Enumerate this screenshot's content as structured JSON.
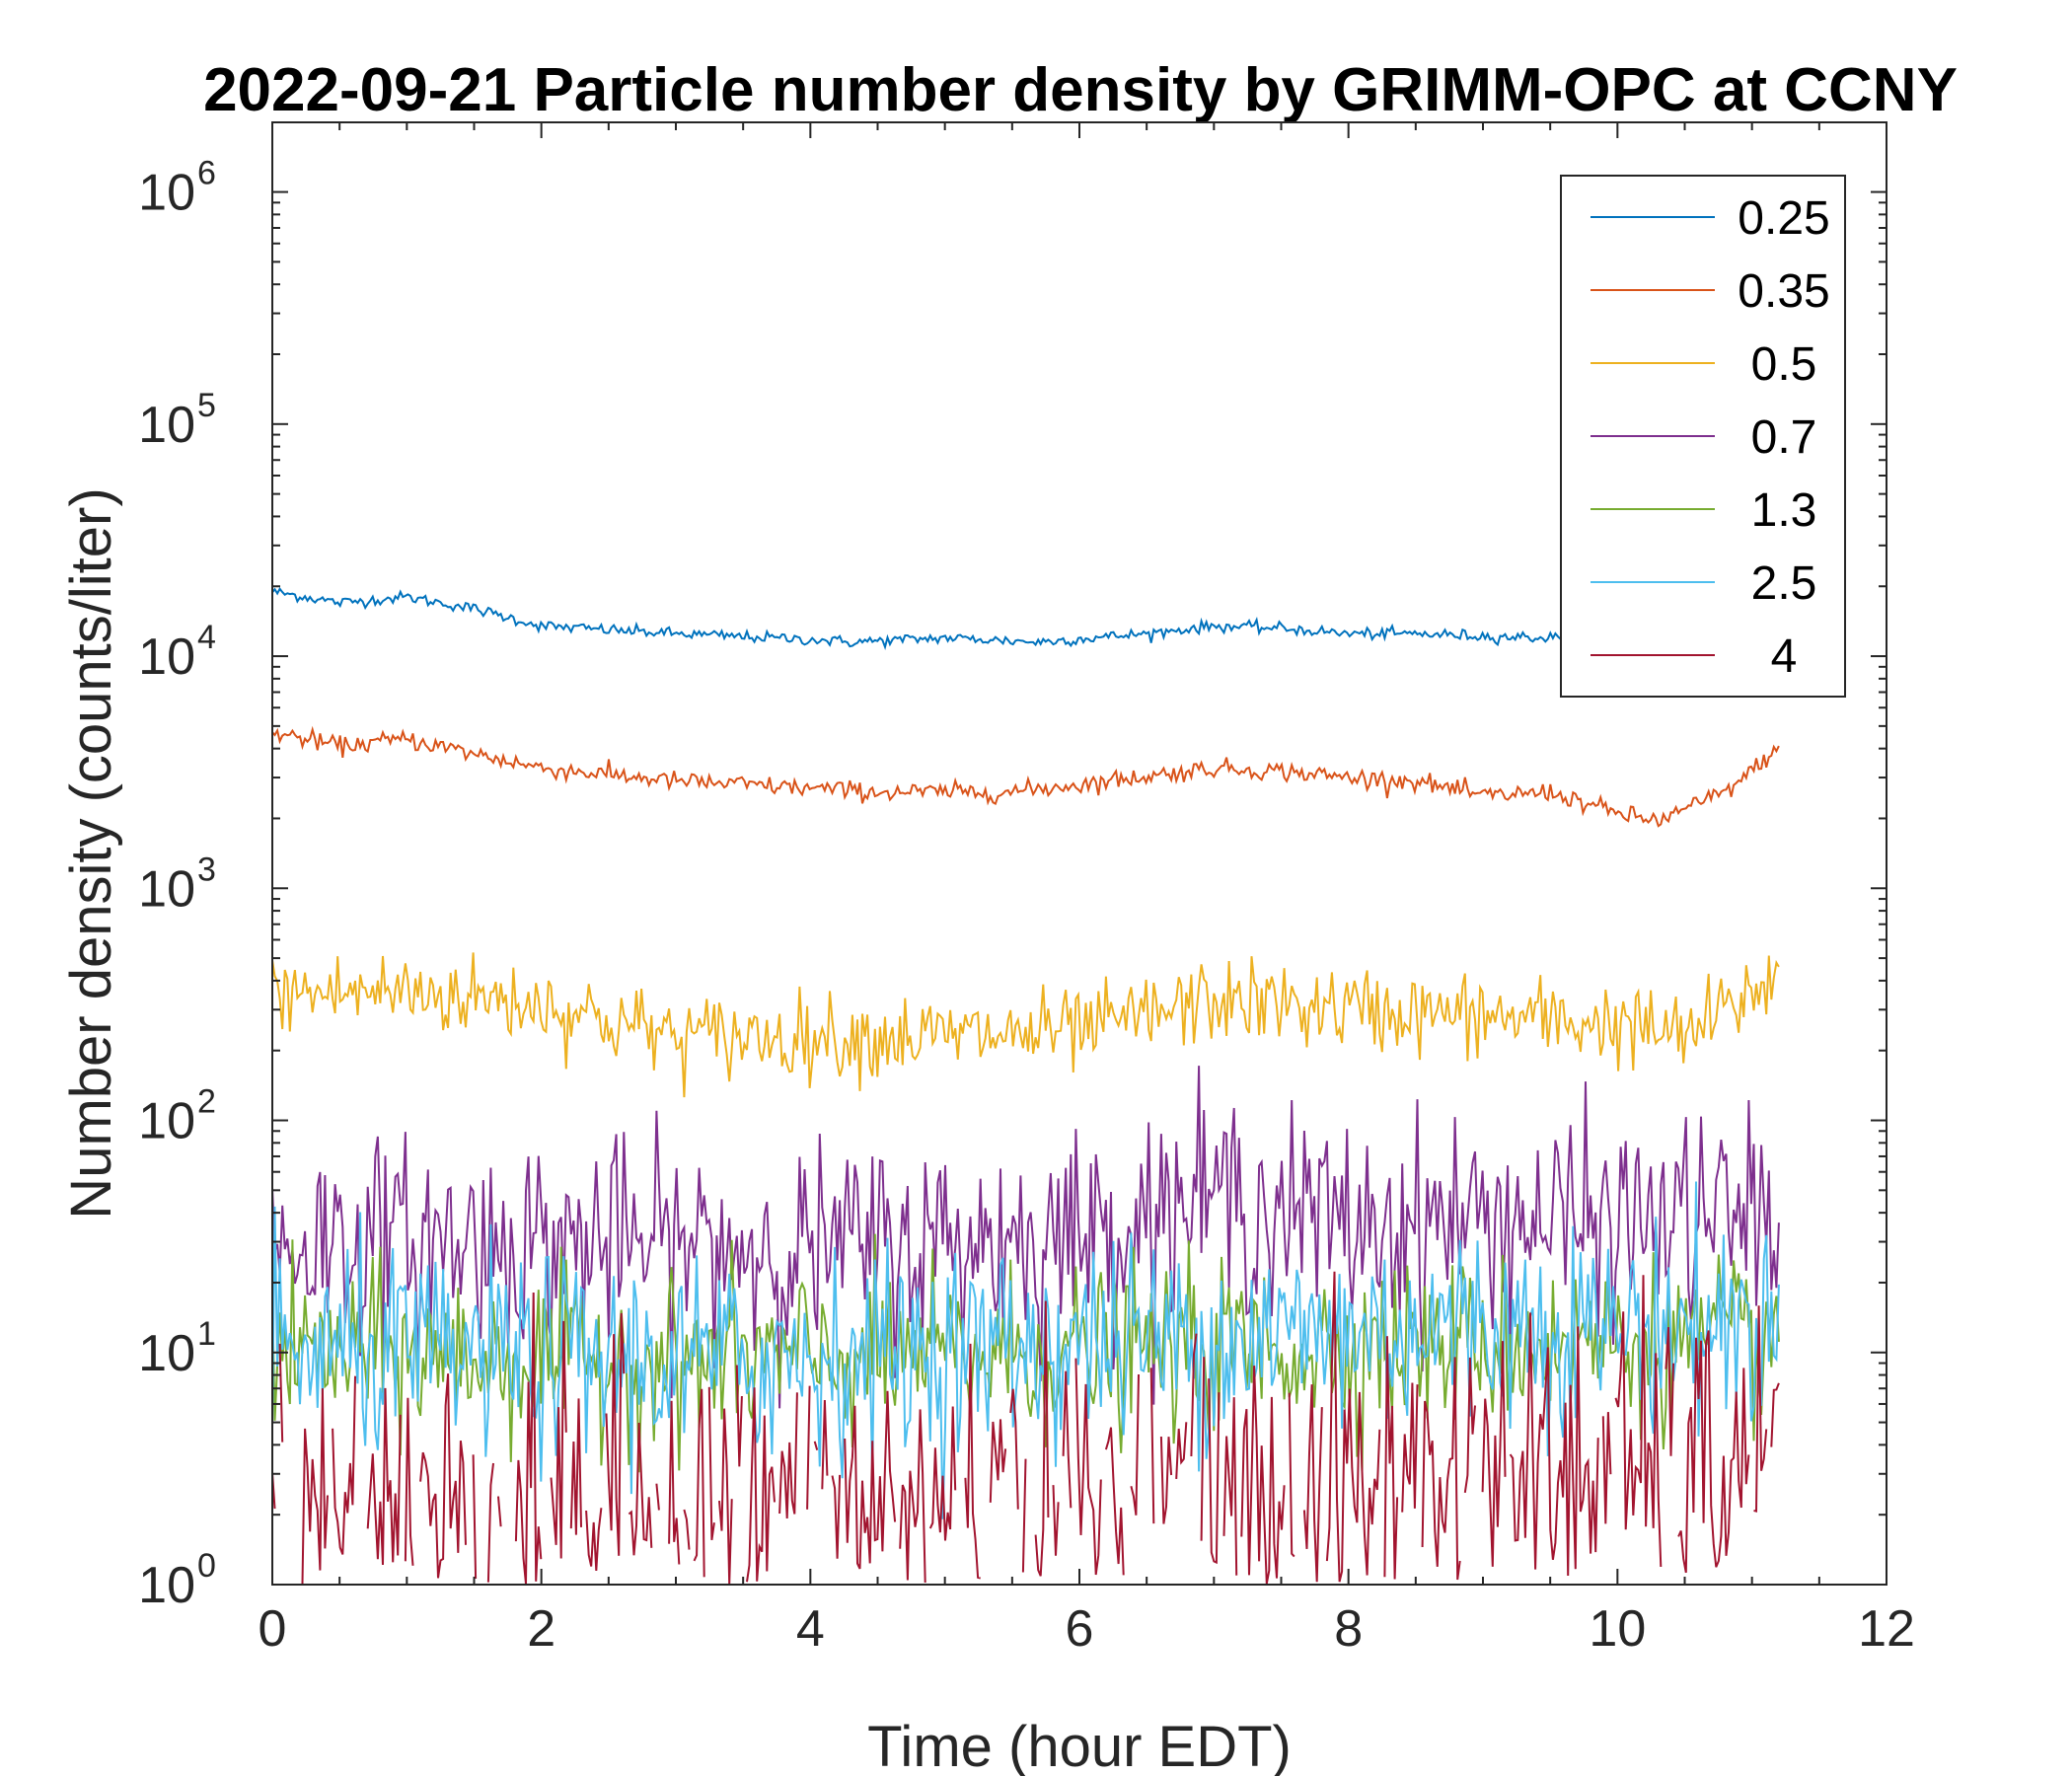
{
  "chart_data": {
    "type": "line",
    "title": "2022-09-21 Particle number density by GRIMM-OPC at CCNY",
    "xlabel": "Time (hour EDT)",
    "ylabel": "Number density (counts/liter)",
    "xlim": [
      0,
      12
    ],
    "ylim_log10": [
      0,
      6.3
    ],
    "yscale": "log",
    "x_ticks": [
      0,
      2,
      4,
      6,
      8,
      10,
      12
    ],
    "x_tick_labels": [
      "0",
      "2",
      "4",
      "6",
      "8",
      "10",
      "12"
    ],
    "y_tick_base": "10",
    "y_tick_exponents": [
      "0",
      "1",
      "2",
      "3",
      "4",
      "5",
      "6"
    ],
    "legend_position": "top-right",
    "x_end": 11.2,
    "series": [
      {
        "name": "0.25",
        "color": "#0072BD",
        "noise": 0.012,
        "anchors_x": [
          0,
          0.5,
          1.0,
          1.5,
          2.0,
          3.0,
          4.0,
          4.3,
          5.0,
          5.7,
          6.5,
          7.0,
          7.5,
          8.0,
          8.5,
          9.0,
          9.5
        ],
        "anchors_y": [
          19000,
          17000,
          18000,
          16000,
          13500,
          12500,
          11800,
          11500,
          12000,
          11500,
          12500,
          13500,
          13200,
          12500,
          12500,
          12200,
          12000
        ]
      },
      {
        "name": "0.35",
        "color": "#D95319",
        "noise": 0.02,
        "anchors_x": [
          0,
          0.5,
          1.0,
          1.5,
          2.0,
          3.0,
          4.0,
          4.5,
          5.0,
          5.5,
          6.0,
          7.0,
          7.5,
          8.0,
          8.5,
          9.0,
          9.5,
          10.0,
          10.3,
          10.8,
          11.0,
          11.2
        ],
        "anchors_y": [
          4700,
          4100,
          4400,
          3800,
          3300,
          2900,
          2700,
          2600,
          2600,
          2600,
          2800,
          3300,
          3200,
          3000,
          2900,
          2500,
          2600,
          2100,
          1950,
          2600,
          3200,
          4100
        ]
      },
      {
        "name": "0.5",
        "color": "#EDB120",
        "noise": 0.09,
        "anchors_x": [
          0,
          1.0,
          2.0,
          3.0,
          4.0,
          5.0,
          6.0,
          7.0,
          8.0,
          9.0,
          10.0,
          10.5,
          11.0,
          11.2
        ],
        "anchors_y": [
          350,
          360,
          320,
          230,
          230,
          230,
          240,
          330,
          300,
          280,
          260,
          230,
          350,
          450
        ]
      },
      {
        "name": "0.7",
        "color": "#7E2F8E",
        "noise": 0.22,
        "anchors_x": [
          0,
          2,
          4,
          6,
          7,
          8,
          9,
          10,
          11.2
        ],
        "anchors_y": [
          30,
          30,
          28,
          32,
          48,
          35,
          38,
          36,
          40
        ]
      },
      {
        "name": "1.3",
        "color": "#77AC30",
        "noise": 0.18,
        "anchors_x": [
          0,
          3,
          6,
          9,
          11.2
        ],
        "anchors_y": [
          10,
          9,
          10,
          11,
          11
        ]
      },
      {
        "name": "2.5",
        "color": "#4DBEEE",
        "noise": 0.22,
        "anchors_x": [
          0,
          3,
          6,
          9,
          11.2
        ],
        "anchors_y": [
          10,
          9,
          11,
          13,
          13
        ]
      },
      {
        "name": "4",
        "color": "#A2142F",
        "noise": 0.35,
        "anchors_x": [
          0,
          3,
          6,
          9,
          11.2
        ],
        "anchors_y": [
          2,
          2,
          2,
          2.8,
          3
        ]
      }
    ]
  }
}
